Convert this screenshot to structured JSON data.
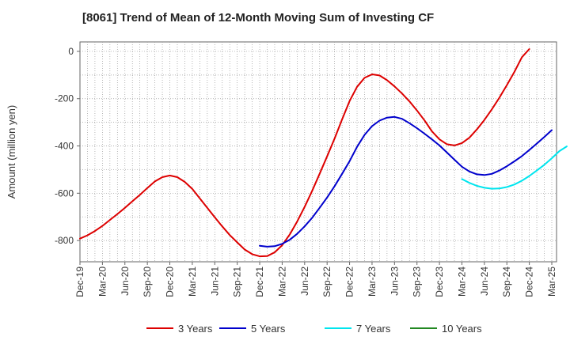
{
  "chart_data": {
    "type": "line",
    "title": "[8061]  Trend of Mean of 12-Month Moving Sum of Investing CF",
    "xlabel": "",
    "ylabel": "Amount (million yen)",
    "ylim": [
      -890,
      40
    ],
    "yticks": [
      0,
      -200,
      -400,
      -600,
      -800
    ],
    "x_tick_labels": [
      "Dec-19",
      "Mar-20",
      "Jun-20",
      "Sep-20",
      "Dec-20",
      "Mar-21",
      "Jun-21",
      "Sep-21",
      "Dec-21",
      "Mar-22",
      "Jun-22",
      "Sep-22",
      "Dec-22",
      "Mar-23",
      "Jun-23",
      "Sep-23",
      "Dec-23",
      "Mar-24",
      "Jun-24",
      "Sep-24",
      "Dec-24",
      "Mar-25"
    ],
    "grid": true,
    "legend_position": "bottom",
    "series": [
      {
        "name": "3 Years",
        "color": "#dd0000",
        "start_index": 0,
        "values": [
          -792,
          -778,
          -760,
          -738,
          -713,
          -688,
          -662,
          -634,
          -607,
          -578,
          -550,
          -532,
          -525,
          -532,
          -552,
          -582,
          -622,
          -662,
          -702,
          -740,
          -777,
          -808,
          -838,
          -858,
          -867,
          -866,
          -850,
          -820,
          -775,
          -720,
          -658,
          -590,
          -518,
          -444,
          -368,
          -288,
          -210,
          -150,
          -112,
          -97,
          -102,
          -122,
          -148,
          -178,
          -212,
          -250,
          -292,
          -338,
          -372,
          -393,
          -398,
          -388,
          -365,
          -330,
          -290,
          -245,
          -196,
          -143,
          -87,
          -25,
          10
        ]
      },
      {
        "name": "5 Years",
        "color": "#0000cc",
        "start_index": 24,
        "values": [
          -822,
          -826,
          -824,
          -814,
          -797,
          -772,
          -740,
          -704,
          -662,
          -618,
          -570,
          -518,
          -464,
          -404,
          -353,
          -316,
          -293,
          -280,
          -277,
          -285,
          -304,
          -325,
          -348,
          -372,
          -398,
          -428,
          -458,
          -488,
          -508,
          -520,
          -523,
          -518,
          -504,
          -486,
          -465,
          -443,
          -417,
          -390,
          -362,
          -333
        ]
      },
      {
        "name": "7 Years",
        "color": "#00e5ee",
        "start_index": 51,
        "values": [
          -540,
          -556,
          -569,
          -577,
          -581,
          -580,
          -574,
          -563,
          -547,
          -527,
          -504,
          -480,
          -452,
          -422,
          -402
        ]
      },
      {
        "name": "10 Years",
        "color": "#228822",
        "start_index": 0,
        "values": []
      }
    ]
  }
}
